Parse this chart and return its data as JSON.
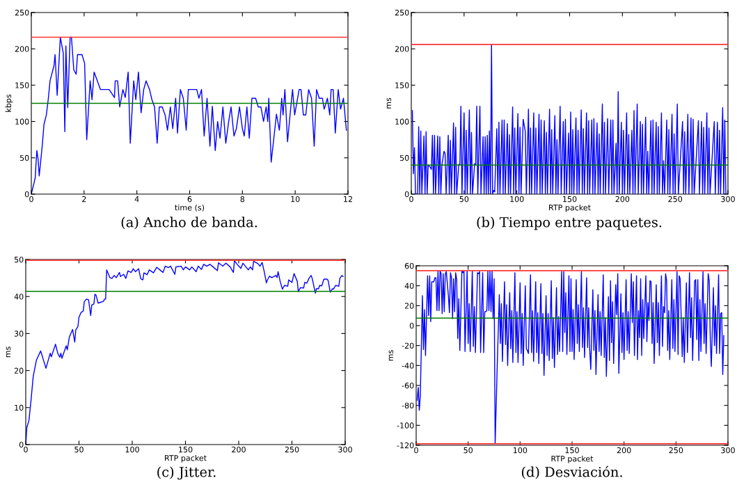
{
  "chart_data": [
    {
      "type": "line",
      "title": "(a) Ancho de banda.",
      "xlabel": "time (s)",
      "ylabel": "kbps",
      "xlim": [
        0,
        12
      ],
      "xticks": [
        0,
        2,
        4,
        6,
        8,
        10,
        12
      ],
      "ylim": [
        0,
        250
      ],
      "yticks": [
        0,
        50,
        100,
        150,
        200,
        250
      ],
      "series": [
        {
          "color": "#0000ff",
          "x": [
            0,
            0.1,
            0.15,
            0.17,
            0.21,
            0.26,
            0.3,
            0.42,
            0.48,
            0.57,
            0.64,
            0.71,
            0.86,
            0.9,
            0.98,
            1.1,
            1.21,
            1.27,
            1.31,
            1.38,
            1.47,
            1.52,
            1.61,
            1.7,
            1.75,
            1.92,
            2.02,
            2.1,
            2.23,
            2.3,
            2.38,
            2.62,
            2.95,
            3.15,
            3.18,
            3.27,
            3.35,
            3.47,
            3.56,
            3.67,
            3.75,
            3.88,
            3.96,
            4.06,
            4.16,
            4.26,
            4.35,
            4.48,
            4.57,
            4.67,
            4.77,
            4.85,
            4.96,
            5.07,
            5.16,
            5.27,
            5.36,
            5.47,
            5.54,
            5.65,
            5.76,
            5.87,
            5.95,
            6.27,
            6.35,
            6.45,
            6.55,
            6.66,
            6.77,
            6.86,
            6.97,
            7.06,
            7.15,
            7.26,
            7.37,
            7.48,
            7.57,
            7.68,
            7.77,
            7.89,
            8.0,
            8.07,
            8.17,
            8.26,
            8.36,
            8.5,
            8.6,
            8.7,
            8.8,
            8.9,
            8.96,
            9.0,
            9.09,
            9.2,
            9.29,
            9.4,
            9.49,
            9.54,
            9.61,
            9.71,
            9.8,
            9.9,
            9.98,
            10.15,
            10.22,
            10.31,
            10.4,
            10.51,
            10.62,
            10.72,
            10.81,
            10.91,
            11.03,
            11.1,
            11.22,
            11.31,
            11.36,
            11.44,
            11.52,
            11.63,
            11.72,
            11.83,
            11.94
          ],
          "values": [
            0,
            15,
            23,
            37,
            60,
            47,
            25,
            69,
            96,
            109,
            130,
            156,
            177,
            192,
            136,
            216,
            194,
            86,
            204,
            119,
            216,
            216,
            171,
            165,
            192,
            192,
            180,
            75,
            156,
            130,
            168,
            144,
            144,
            133,
            156,
            156,
            120,
            144,
            133,
            168,
            70,
            156,
            130,
            168,
            112,
            144,
            156,
            144,
            130,
            120,
            70,
            120,
            120,
            109,
            88,
            120,
            90,
            132,
            84,
            144,
            132,
            88,
            144,
            144,
            132,
            144,
            80,
            132,
            66,
            121,
            60,
            100,
            77,
            120,
            70,
            100,
            120,
            80,
            90,
            120,
            90,
            80,
            120,
            77,
            132,
            132,
            120,
            120,
            100,
            120,
            100,
            132,
            44,
            80,
            110,
            88,
            132,
            109,
            144,
            72,
            107,
            144,
            109,
            144,
            144,
            109,
            109,
            144,
            132,
            66,
            144,
            132,
            132,
            117,
            132,
            109,
            144,
            144,
            84,
            144,
            117,
            132,
            88
          ]
        }
      ],
      "ref_lines": [
        {
          "axis": "y",
          "value": 216,
          "color": "#ff3333"
        },
        {
          "axis": "y",
          "value": 125,
          "color": "#008000"
        }
      ]
    },
    {
      "type": "line",
      "title": "(b) Tiempo entre paquetes.",
      "xlabel": "RTP packet",
      "ylabel": "ms",
      "xlim": [
        0,
        300
      ],
      "xticks": [
        0,
        50,
        100,
        150,
        200,
        250,
        300
      ],
      "ylim": [
        0,
        250
      ],
      "yticks": [
        0,
        50,
        100,
        150,
        200,
        250
      ],
      "series": [
        {
          "color": "#0000ff",
          "x": [
            1,
            2,
            3,
            4,
            6,
            7,
            8,
            9,
            10,
            12,
            13,
            14,
            15,
            16,
            18,
            19,
            20,
            21,
            22,
            23,
            25,
            26,
            27,
            28,
            29,
            31,
            32,
            33,
            35,
            36,
            37,
            38,
            40,
            41,
            42,
            43,
            45,
            46,
            47,
            48,
            50,
            51,
            52,
            53,
            55,
            56,
            57,
            58,
            60,
            61,
            62,
            63,
            65,
            66,
            68,
            69,
            70,
            71,
            72,
            73,
            74,
            75,
            76,
            77,
            78,
            79,
            81,
            82,
            83,
            84,
            86,
            87,
            88,
            89,
            91,
            92,
            93,
            94,
            96,
            97,
            98,
            99,
            101,
            102,
            103,
            104,
            106,
            108,
            109,
            111,
            112,
            113,
            114,
            116,
            117,
            118,
            119,
            121,
            122,
            123,
            124,
            126,
            127,
            128,
            129,
            131,
            132,
            133,
            134,
            136,
            137,
            138,
            139,
            141,
            142,
            144,
            145,
            146,
            147,
            149,
            150,
            151,
            152,
            153,
            154,
            156,
            157,
            158,
            159,
            161,
            162,
            163,
            164,
            166,
            167,
            168,
            169,
            171,
            172,
            173,
            174,
            176,
            177,
            178,
            179,
            181,
            182,
            183,
            184,
            186,
            187,
            189,
            190,
            191,
            192,
            194,
            195,
            196,
            197,
            199,
            200,
            201,
            202,
            204,
            205,
            206,
            207,
            209,
            210,
            211,
            212,
            214,
            215,
            217,
            218,
            219,
            220,
            222,
            223,
            224,
            225,
            227,
            228,
            229,
            230,
            232,
            233,
            234,
            235,
            237,
            238,
            239,
            240,
            242,
            243,
            244,
            245,
            247,
            248,
            249,
            250,
            252,
            253,
            257,
            258,
            259,
            260,
            262,
            263,
            265,
            266,
            267,
            268,
            272,
            273,
            275,
            276,
            277,
            278,
            280,
            281,
            282,
            283,
            287,
            288,
            290,
            291,
            292,
            293,
            295,
            296,
            297,
            298
          ],
          "values": [
            115,
            28,
            64,
            0,
            0,
            93,
            0,
            87,
            0,
            80,
            0,
            86,
            0,
            40,
            37,
            34,
            81,
            0,
            81,
            0,
            80,
            0,
            79,
            0,
            40,
            59,
            56,
            0,
            81,
            0,
            74,
            0,
            98,
            0,
            92,
            0,
            41,
            40,
            121,
            0,
            112,
            0,
            88,
            0,
            116,
            0,
            85,
            0,
            42,
            40,
            121,
            0,
            121,
            0,
            79,
            0,
            79,
            0,
            81,
            0,
            87,
            0,
            206,
            0,
            5,
            3,
            90,
            0,
            99,
            0,
            102,
            0,
            102,
            0,
            97,
            0,
            82,
            0,
            120,
            0,
            91,
            0,
            111,
            0,
            92,
            0,
            103,
            86,
            0,
            117,
            0,
            91,
            0,
            112,
            0,
            91,
            0,
            110,
            0,
            102,
            0,
            101,
            0,
            85,
            0,
            117,
            0,
            89,
            0,
            108,
            0,
            75,
            0,
            121,
            0,
            100,
            0,
            103,
            0,
            84,
            0,
            113,
            0,
            89,
            0,
            105,
            0,
            88,
            0,
            116,
            0,
            90,
            0,
            112,
            0,
            101,
            0,
            102,
            0,
            104,
            0,
            98,
            0,
            83,
            0,
            124,
            0,
            99,
            0,
            104,
            0,
            102,
            0,
            102,
            0,
            70,
            0,
            141,
            0,
            99,
            0,
            88,
            0,
            112,
            0,
            82,
            0,
            88,
            0,
            115,
            0,
            124,
            0,
            100,
            0,
            96,
            0,
            106,
            0,
            59,
            0,
            101,
            0,
            102,
            0,
            99,
            0,
            93,
            0,
            112,
            0,
            46,
            0,
            102,
            0,
            89,
            0,
            110,
            0,
            83,
            0,
            124,
            0,
            100,
            0,
            86,
            0,
            110,
            0,
            105,
            0,
            103,
            0,
            101,
            0,
            100,
            0,
            92,
            0,
            112,
            0,
            91,
            0,
            100,
            0,
            99,
            0,
            88,
            0,
            119,
            0,
            102,
            0
          ]
        }
      ],
      "ref_lines": [
        {
          "axis": "y",
          "value": 206,
          "color": "#ff3333"
        },
        {
          "axis": "y",
          "value": 40,
          "color": "#008000"
        }
      ]
    },
    {
      "type": "line",
      "title": "(c) Jitter.",
      "xlabel": "RTP packet",
      "ylabel": "ms",
      "xlim": [
        0,
        300
      ],
      "xticks": [
        0,
        50,
        100,
        150,
        200,
        250,
        300
      ],
      "ylim": [
        0,
        50
      ],
      "yticks": [
        0,
        10,
        20,
        30,
        40,
        50
      ],
      "series": [
        {
          "color": "#0000ff",
          "x": [
            0,
            1,
            3,
            5,
            7,
            10,
            14,
            19,
            23,
            24,
            28,
            30,
            32,
            33,
            34,
            38,
            39,
            41,
            44,
            46,
            47,
            49,
            50,
            52,
            54,
            55,
            57,
            59,
            61,
            62,
            64,
            65,
            66,
            68,
            73,
            74,
            75,
            76,
            79,
            81,
            83,
            85,
            88,
            89,
            92,
            94,
            96,
            99,
            101,
            103,
            106,
            108,
            110,
            111,
            114,
            116,
            120,
            123,
            126,
            129,
            131,
            134,
            136,
            140,
            141,
            146,
            148,
            150,
            154,
            156,
            160,
            162,
            165,
            167,
            170,
            173,
            176,
            180,
            181,
            185,
            188,
            192,
            195,
            196,
            198,
            202,
            204,
            209,
            211,
            213,
            214,
            218,
            220,
            222,
            224,
            226,
            227,
            229,
            231,
            235,
            236,
            237,
            239,
            241,
            243,
            246,
            247,
            250,
            252,
            255,
            256,
            258,
            261,
            262,
            264,
            266,
            268,
            269,
            272,
            273,
            275,
            276,
            278,
            280,
            283,
            284,
            286,
            288,
            289,
            291,
            294,
            295,
            297,
            298
          ],
          "values": [
            0,
            4.6,
            6.5,
            12.1,
            18.4,
            22.8,
            25.3,
            20.6,
            24.7,
            23.7,
            27.1,
            24.7,
            23.6,
            24.7,
            23.3,
            26.7,
            25.6,
            29.1,
            31.1,
            27.7,
            31.0,
            31.9,
            34.4,
            35.7,
            36.1,
            38.6,
            39.3,
            39.1,
            34.9,
            37.7,
            38.0,
            40.6,
            40.4,
            38.2,
            38.7,
            39.3,
            39.3,
            47.2,
            45.1,
            44.9,
            45.7,
            45.1,
            46.5,
            45.4,
            46.0,
            44.9,
            46.9,
            46.5,
            47.5,
            46.7,
            47.5,
            44.8,
            44.5,
            46.4,
            45.9,
            47.2,
            46.4,
            47.9,
            47.2,
            46.5,
            48.2,
            47.8,
            48.2,
            46.0,
            48.0,
            48.2,
            47.2,
            48.0,
            47.2,
            48.0,
            46.7,
            48.2,
            47.3,
            48.7,
            48.2,
            48.7,
            48.0,
            47.0,
            49.1,
            48.2,
            49.0,
            48.0,
            46.5,
            49.7,
            48.9,
            47.6,
            49.0,
            47.2,
            48.0,
            47.2,
            49.5,
            48.9,
            48.2,
            49.2,
            46.7,
            43.7,
            44.5,
            45.5,
            45.1,
            45.7,
            45.1,
            46.7,
            44.0,
            42.0,
            43.0,
            42.8,
            44.5,
            43.8,
            46.2,
            44.1,
            41.3,
            42.4,
            42.3,
            43.8,
            43.6,
            44.9,
            45.7,
            44.9,
            40.9,
            42.1,
            42.1,
            43.0,
            42.9,
            44.7,
            44.7,
            44.3,
            41.2,
            42.1,
            42.0,
            43.0,
            42.8,
            44.9,
            45.7,
            45.4
          ]
        }
      ],
      "ref_lines": [
        {
          "axis": "y",
          "value": 49.8,
          "color": "#ff3333"
        },
        {
          "axis": "y",
          "value": 41.4,
          "color": "#008000"
        }
      ]
    },
    {
      "type": "line",
      "title": "(d) Desviación.",
      "xlabel": "RTP packet",
      "ylabel": "ms",
      "xlim": [
        0,
        300
      ],
      "xticks": [
        0,
        50,
        100,
        150,
        200,
        250,
        300
      ],
      "ylim": [
        -120,
        60
      ],
      "yticks": [
        -120,
        -100,
        -80,
        -60,
        -40,
        -20,
        0,
        20,
        40,
        60
      ],
      "series": [
        {
          "color": "#0000ff",
          "x": [
            1,
            2,
            3,
            4,
            5,
            6,
            7,
            8,
            9,
            11,
            12,
            13,
            14,
            15,
            17,
            18,
            19,
            20,
            21,
            22,
            23,
            24,
            25,
            26,
            27,
            28,
            29,
            31,
            32,
            33,
            34,
            35,
            36,
            37,
            38,
            39,
            40,
            41,
            42,
            44,
            45,
            46,
            47,
            49,
            50,
            51,
            52,
            54,
            55,
            56,
            57,
            59,
            60,
            61,
            62,
            64,
            65,
            66,
            67,
            68,
            69,
            70,
            71,
            72,
            73,
            74,
            75,
            76,
            77,
            78,
            79,
            80,
            81,
            82,
            83,
            85,
            86,
            87,
            88,
            90,
            91,
            92,
            93,
            95,
            96,
            97,
            98,
            100,
            101,
            102,
            103,
            105,
            106,
            107,
            108,
            110,
            111,
            112,
            113,
            115,
            116,
            117,
            118,
            120,
            121,
            122,
            123,
            125,
            126,
            127,
            128,
            130,
            131,
            132,
            133,
            135,
            136,
            137,
            138,
            140,
            141,
            142,
            143,
            144,
            145,
            147,
            148,
            149,
            150,
            151,
            152,
            154,
            155,
            156,
            157,
            159,
            160,
            161,
            162,
            164,
            165,
            166,
            167,
            168,
            170,
            171,
            172,
            173,
            175,
            176,
            177,
            178,
            180,
            181,
            182,
            183,
            185,
            186,
            187,
            188,
            189,
            190,
            192,
            193,
            194,
            195,
            197,
            198,
            199,
            200,
            202,
            203,
            204,
            205,
            207,
            208,
            209,
            210,
            212,
            213,
            214,
            215,
            216,
            217,
            218,
            219,
            221,
            222,
            223,
            224,
            225,
            226,
            227,
            228,
            229,
            231,
            232,
            233,
            234,
            236,
            237,
            238,
            239,
            240,
            241,
            242,
            243,
            244,
            246,
            247,
            248,
            249,
            251,
            252,
            253,
            254,
            256,
            257,
            258,
            260,
            261,
            263,
            264,
            265,
            266,
            268,
            269,
            270,
            271,
            272,
            273,
            274,
            276,
            277,
            278,
            279,
            281,
            282,
            283,
            284,
            286,
            287,
            288,
            289,
            291,
            292,
            293,
            294,
            295,
            296
          ],
          "values": [
            -75,
            -62,
            -85,
            -70,
            -20,
            30,
            -24,
            16,
            -30,
            50,
            10,
            50,
            4,
            44,
            44,
            48,
            48,
            15,
            55,
            15,
            55,
            52,
            12,
            52,
            14,
            52,
            54,
            30,
            13,
            53,
            48,
            7,
            47,
            14,
            53,
            46,
            -13,
            27,
            -25,
            55,
            53,
            55,
            -26,
            55,
            -18,
            22,
            -26,
            55,
            -21,
            19,
            -27,
            53,
            52,
            54,
            -27,
            53,
            -27,
            14,
            14,
            15,
            55,
            15,
            55,
            14,
            55,
            7,
            47,
            -118,
            -80,
            -40,
            -5,
            31,
            -18,
            22,
            -36,
            44,
            -19,
            21,
            -40,
            33,
            -23,
            15,
            -37,
            53,
            -27,
            14,
            -37,
            43,
            -28,
            12,
            -40,
            40,
            -23,
            -25,
            -28,
            51,
            -27,
            15,
            -36,
            44,
            -27,
            13,
            -38,
            42,
            -28,
            12,
            -50,
            30,
            -30,
            12,
            -35,
            45,
            -33,
            8,
            -42,
            38,
            -29,
            9,
            -26,
            54,
            -26,
            54,
            -7,
            33,
            -29,
            50,
            -26,
            47,
            -26,
            16,
            -34,
            46,
            -18,
            21,
            -26,
            54,
            -22,
            18,
            -32,
            48,
            -22,
            18,
            -24,
            -44,
            36,
            -25,
            15,
            -49,
            31,
            -26,
            14,
            -30,
            51,
            -32,
            8,
            -51,
            29,
            -35,
            45,
            -17,
            24,
            -38,
            41,
            11,
            52,
            -48,
            32,
            -27,
            13,
            -34,
            46,
            -25,
            14,
            -28,
            52,
            3,
            44,
            -30,
            50,
            -34,
            15,
            -12,
            47,
            -30,
            26,
            -13,
            50,
            -16,
            23,
            5,
            45,
            44,
            -18,
            23,
            -38,
            41,
            -17,
            23,
            -30,
            50,
            -21,
            19,
            13,
            52,
            45,
            -25,
            15,
            -34,
            46,
            -23,
            26,
            -26,
            54,
            -29,
            50,
            47,
            -31,
            8,
            -37,
            43,
            -27,
            53,
            -12,
            28,
            -35,
            45,
            46,
            -14,
            46,
            -35,
            26,
            -26,
            54,
            -18,
            22,
            -28,
            52,
            45,
            -14,
            -41,
            38,
            -20,
            20,
            -28,
            51,
            -28,
            12,
            13,
            -49,
            -10
          ]
        }
      ],
      "ref_lines": [
        {
          "axis": "y",
          "value": 55,
          "color": "#ff3333"
        },
        {
          "axis": "y",
          "value": -118.5,
          "color": "#ff3333"
        },
        {
          "axis": "y",
          "value": 7.5,
          "color": "#008000"
        }
      ]
    }
  ]
}
